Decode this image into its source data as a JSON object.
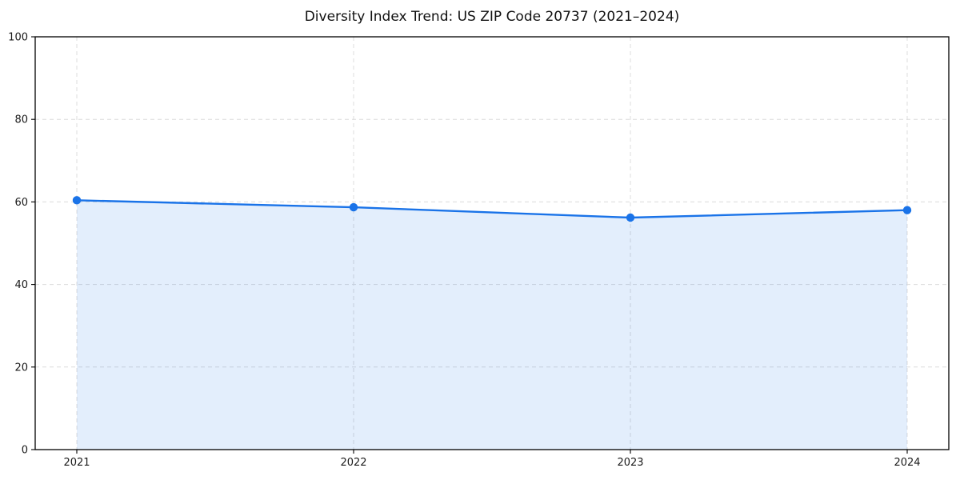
{
  "chart_data": {
    "type": "line",
    "title": "Diversity Index Trend: US ZIP Code 20737 (2021–2024)",
    "categories": [
      "2021",
      "2022",
      "2023",
      "2024"
    ],
    "series": [
      {
        "name": "Diversity Index",
        "values": [
          60.4,
          58.7,
          56.2,
          58.0
        ]
      }
    ],
    "xlabel": "",
    "ylabel": "",
    "ylim": [
      0,
      100
    ],
    "yticks": [
      0,
      20,
      40,
      60,
      80,
      100
    ],
    "grid": true,
    "grid_style": "dashed",
    "legend_position": "none",
    "area_fill": true,
    "marker": "circle",
    "colors": {
      "line": "#1a73e8",
      "fill": "rgba(26,115,232,0.12)",
      "grid": "#dcdcdc",
      "spine": "#000000",
      "tick_text": "#1a1a1a",
      "title_text": "#111111",
      "background": "#ffffff"
    }
  }
}
